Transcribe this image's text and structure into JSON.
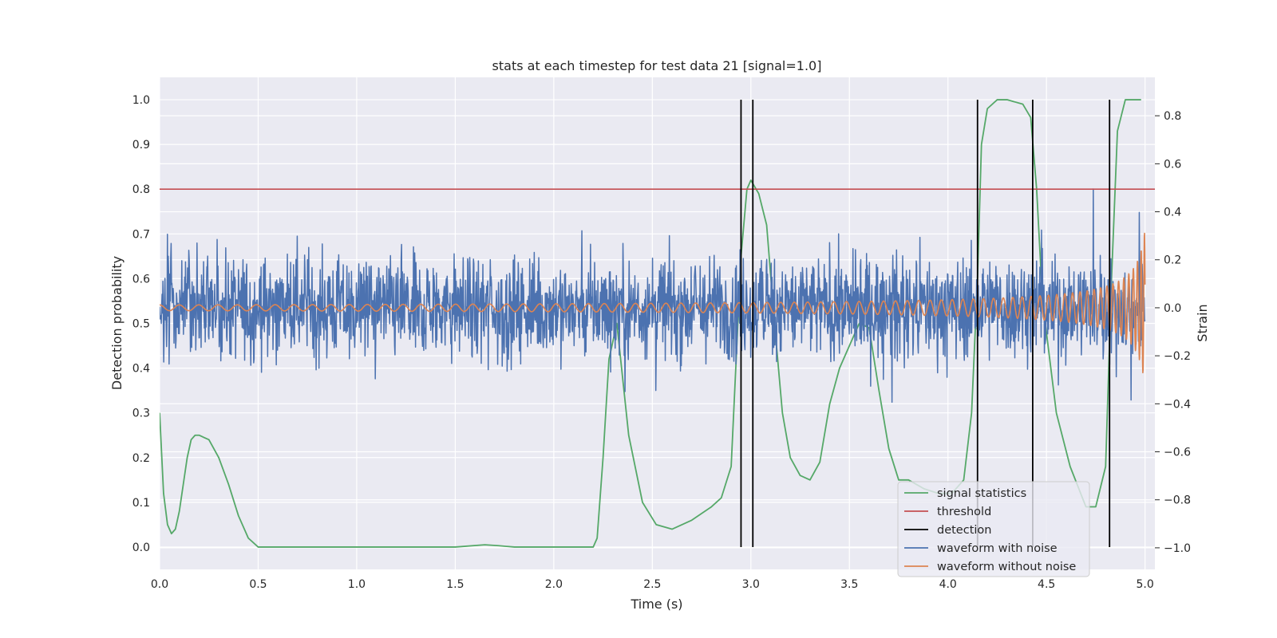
{
  "chart_data": {
    "type": "line",
    "title": "stats at each timestep for test data 21 [signal=1.0]",
    "xlabel": "Time (s)",
    "ylabel": "Detection probability",
    "y2label": "Strain",
    "xlim": [
      0.0,
      5.05
    ],
    "ylim": [
      -0.05,
      1.05
    ],
    "y2lim": [
      -1.09,
      0.96
    ],
    "grid": true,
    "legend_position": "bottom-right",
    "xticks": [
      "0.0",
      "0.5",
      "1.0",
      "1.5",
      "2.0",
      "2.5",
      "3.0",
      "3.5",
      "4.0",
      "4.5",
      "5.0"
    ],
    "yticks": [
      "0.0",
      "0.1",
      "0.2",
      "0.3",
      "0.4",
      "0.5",
      "0.6",
      "0.7",
      "0.8",
      "0.9",
      "1.0"
    ],
    "y2ticks": [
      "−1.0",
      "−0.8",
      "−0.6",
      "−0.4",
      "−0.2",
      "0.0",
      "0.2",
      "0.4",
      "0.6",
      "0.8"
    ],
    "legend": [
      "signal statistics",
      "threshold",
      "detection",
      "waveform with noise",
      "waveform without noise"
    ],
    "colors": {
      "signal_statistics": "#55a868",
      "threshold": "#c44e52",
      "detection": "#000000",
      "waveform_with_noise": "#4c72b0",
      "waveform_without_noise": "#dd8452",
      "plot_background": "#eaeaf2",
      "grid": "#ffffff"
    },
    "threshold": 0.8,
    "detections": [
      2.95,
      3.01,
      4.15,
      4.43,
      4.82
    ],
    "detection_range": [
      0.0,
      1.0
    ],
    "signal_statistics": {
      "x": [
        0.0,
        0.02,
        0.04,
        0.06,
        0.08,
        0.1,
        0.12,
        0.14,
        0.16,
        0.18,
        0.2,
        0.25,
        0.3,
        0.35,
        0.4,
        0.45,
        0.5,
        0.55,
        0.8,
        1.2,
        1.5,
        1.65,
        1.72,
        1.8,
        2.0,
        2.2,
        2.22,
        2.25,
        2.28,
        2.32,
        2.38,
        2.45,
        2.52,
        2.6,
        2.7,
        2.8,
        2.85,
        2.9,
        2.95,
        2.98,
        3.0,
        3.04,
        3.08,
        3.12,
        3.16,
        3.2,
        3.25,
        3.3,
        3.35,
        3.4,
        3.45,
        3.5,
        3.55,
        3.6,
        3.65,
        3.7,
        3.75,
        3.8,
        3.88,
        3.95,
        4.02,
        4.08,
        4.12,
        4.15,
        4.17,
        4.2,
        4.25,
        4.3,
        4.38,
        4.42,
        4.45,
        4.48,
        4.55,
        4.62,
        4.7,
        4.75,
        4.8,
        4.83,
        4.86,
        4.9,
        4.95,
        4.98
      ],
      "y": [
        0.3,
        0.12,
        0.05,
        0.03,
        0.04,
        0.08,
        0.14,
        0.2,
        0.24,
        0.25,
        0.25,
        0.24,
        0.2,
        0.14,
        0.07,
        0.02,
        0.0,
        0.0,
        0.0,
        0.0,
        0.0,
        0.005,
        0.003,
        0.0,
        0.0,
        0.0,
        0.02,
        0.2,
        0.42,
        0.5,
        0.25,
        0.1,
        0.05,
        0.04,
        0.06,
        0.09,
        0.11,
        0.18,
        0.65,
        0.8,
        0.82,
        0.79,
        0.72,
        0.5,
        0.3,
        0.2,
        0.16,
        0.15,
        0.19,
        0.32,
        0.4,
        0.45,
        0.5,
        0.49,
        0.35,
        0.22,
        0.15,
        0.15,
        0.13,
        0.12,
        0.12,
        0.15,
        0.3,
        0.6,
        0.9,
        0.98,
        1.0,
        1.0,
        0.99,
        0.96,
        0.8,
        0.55,
        0.3,
        0.18,
        0.09,
        0.09,
        0.18,
        0.6,
        0.93,
        1.0,
        1.0,
        1.0
      ]
    },
    "waveform_with_noise": {
      "x_range": [
        0.0,
        5.0
      ],
      "points": 2400,
      "noise_amplitude": 0.27
    },
    "waveform_without_noise": {
      "x_range": [
        0.0,
        5.0
      ],
      "amplitude_start": 0.012,
      "amplitude_end": 0.42
    }
  }
}
